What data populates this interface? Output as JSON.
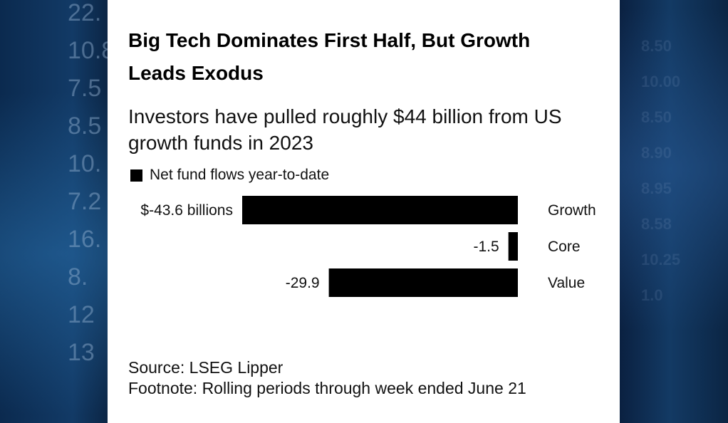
{
  "background": {
    "left_digits": [
      "22.",
      "10.8",
      "7.5",
      "8.5",
      "10.",
      "7.2",
      "16.",
      "8.",
      "12",
      "13"
    ],
    "right_digits": [
      "8.50",
      "10.00",
      "8.50",
      "8.90",
      "8.95",
      "8.58",
      "10.25",
      "1.0"
    ]
  },
  "title": "Big Tech Dominates First Half, But Growth Leads Exodus",
  "subtitle": "Investors have pulled roughly $44 billion from US growth funds in 2023",
  "legend": {
    "label": "Net fund flows year-to-date",
    "color": "#000000"
  },
  "chart_data": {
    "type": "bar",
    "orientation": "horizontal",
    "categories": [
      "Growth",
      "Core",
      "Value"
    ],
    "series": [
      {
        "name": "Net fund flows year-to-date",
        "values": [
          -43.6,
          -1.5,
          -29.9
        ]
      }
    ],
    "value_labels": [
      "$-43.6 billions",
      "-1.5",
      "-29.9"
    ],
    "xlim": [
      -43.6,
      0
    ],
    "bar_color": "#000000",
    "grid": false
  },
  "footer": {
    "source": "Source: LSEG Lipper",
    "footnote": "Footnote: Rolling periods through week ended June 21"
  }
}
